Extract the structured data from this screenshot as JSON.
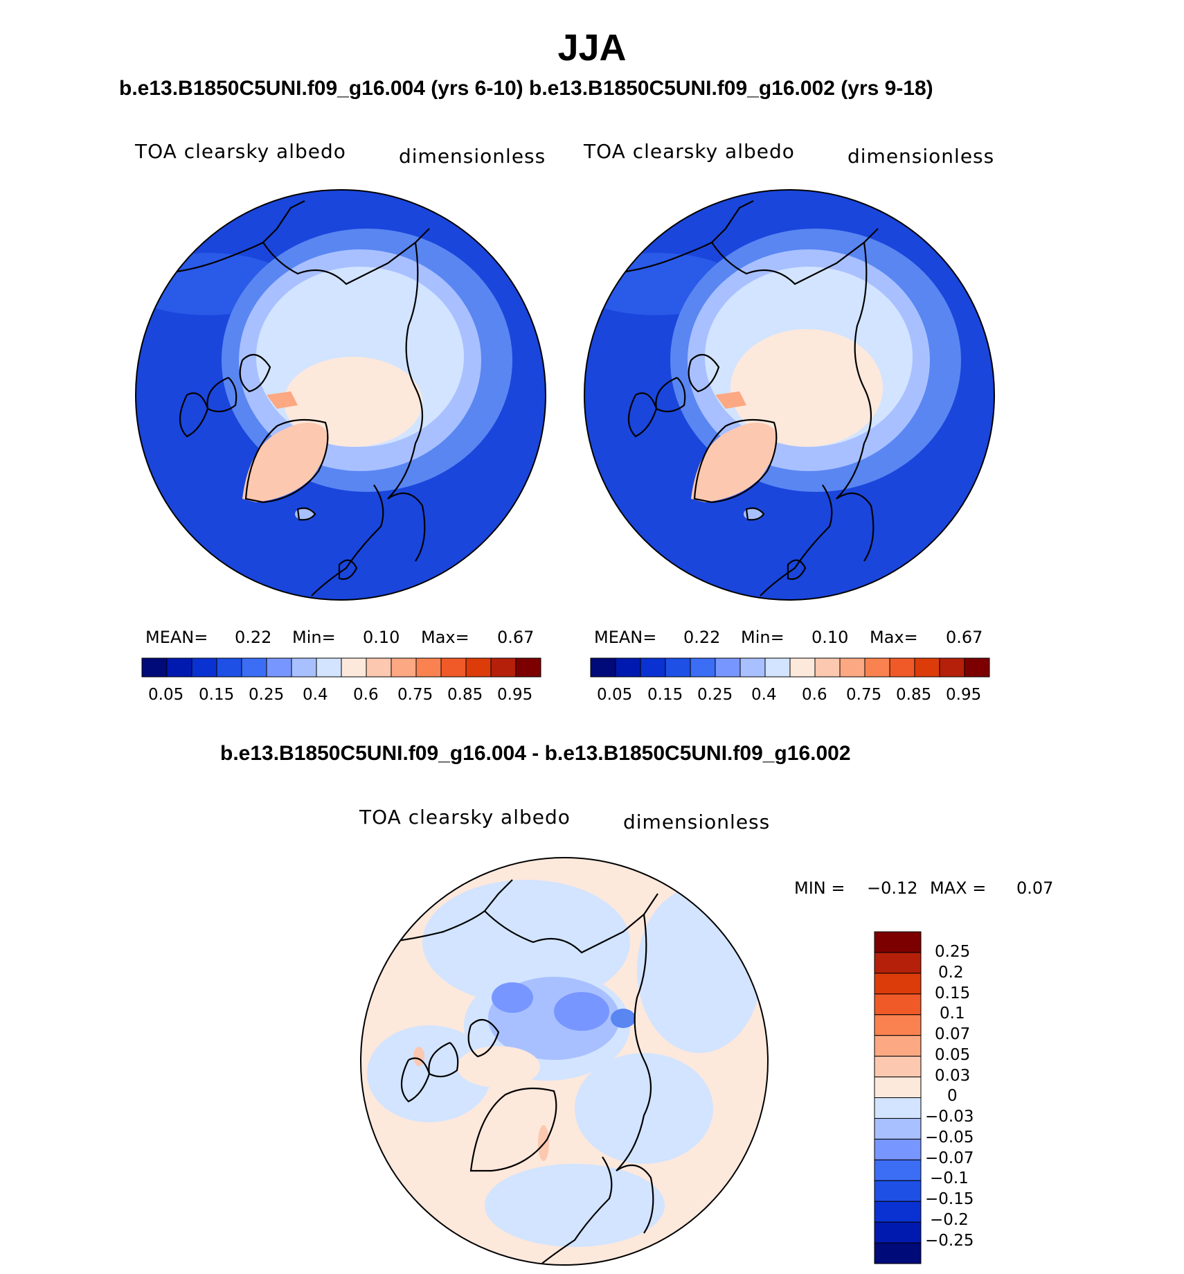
{
  "header": {
    "title": "JJA",
    "subtitle": "b.e13.B1850C5UNI.f09_g16.004 (yrs 6-10) b.e13.B1850C5UNI.f09_g16.002 (yrs 9-18)",
    "diff_title": "b.e13.B1850C5UNI.f09_g16.004 - b.e13.B1850C5UNI.f09_g16.002"
  },
  "panels": [
    {
      "variable": "TOA clearsky albedo",
      "units": "dimensionless",
      "mean_label": "MEAN=",
      "mean_value": "0.22",
      "min_label": "Min=",
      "min_value": "0.10",
      "max_label": "Max=",
      "max_value": "0.67"
    },
    {
      "variable": "TOA clearsky albedo",
      "units": "dimensionless",
      "mean_label": "MEAN=",
      "mean_value": "0.22",
      "min_label": "Min=",
      "min_value": "0.10",
      "max_label": "Max=",
      "max_value": "0.67"
    }
  ],
  "diff_panel": {
    "variable": "TOA clearsky albedo",
    "units": "dimensionless",
    "min_label": "MIN =",
    "min_value": "−0.12",
    "max_label": "MAX =",
    "max_value": "0.07"
  },
  "colorbar_top": {
    "colors": [
      "#000a78",
      "#001ab0",
      "#0a32d2",
      "#1e50e6",
      "#3c6ef5",
      "#7896ff",
      "#a8c0ff",
      "#d2e4ff",
      "#fde8dc",
      "#fcc8b0",
      "#fca882",
      "#fa8250",
      "#f05a28",
      "#dc3c0a",
      "#b4200a",
      "#7d0000"
    ],
    "tick_labels": [
      "0.05",
      "0.15",
      "0.25",
      "0.4",
      "0.6",
      "0.75",
      "0.85",
      "0.95"
    ]
  },
  "colorbar_diff": {
    "colors": [
      "#000a78",
      "#001ab0",
      "#0a32d2",
      "#1e50e6",
      "#3c6ef5",
      "#7896ff",
      "#a8c0ff",
      "#d2e4ff",
      "#fde8dc",
      "#fcc8b0",
      "#fca882",
      "#fa8250",
      "#f05a28",
      "#dc3c0a",
      "#b4200a",
      "#7d0000"
    ],
    "tick_labels": [
      "0.25",
      "0.2",
      "0.15",
      "0.1",
      "0.07",
      "0.05",
      "0.03",
      "0",
      "−0.03",
      "−0.05",
      "−0.07",
      "−0.1",
      "−0.15",
      "−0.2",
      "−0.25"
    ]
  }
}
